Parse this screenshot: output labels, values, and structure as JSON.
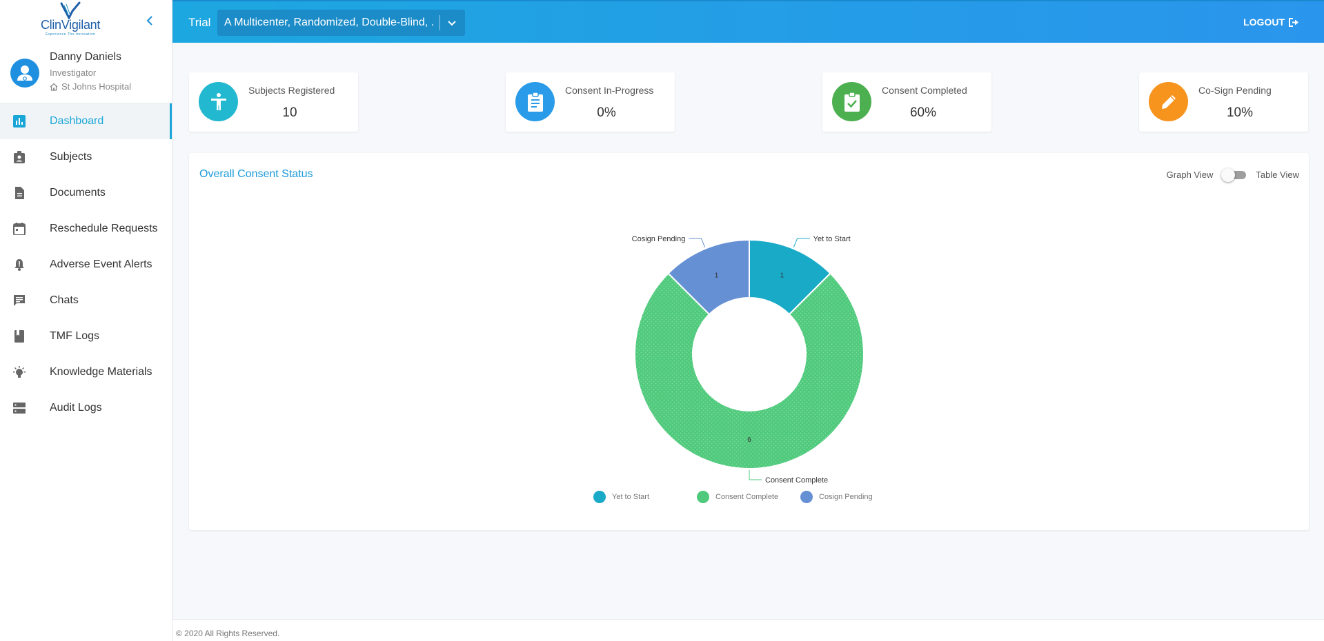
{
  "brand": {
    "name_part1": "Clin",
    "name_part2": "Vigilant",
    "tagline": "Experience The Innovation"
  },
  "user": {
    "name": "Danny Daniels",
    "role": "Investigator",
    "site": "St Johns Hospital"
  },
  "sidebar": {
    "items": [
      {
        "label": "Dashboard",
        "icon": "bar-chart-icon",
        "active": true
      },
      {
        "label": "Subjects",
        "icon": "badge-icon"
      },
      {
        "label": "Documents",
        "icon": "document-icon"
      },
      {
        "label": "Reschedule Requests",
        "icon": "calendar-icon"
      },
      {
        "label": "Adverse Event Alerts",
        "icon": "bell-alert-icon"
      },
      {
        "label": "Chats",
        "icon": "chat-icon"
      },
      {
        "label": "TMF Logs",
        "icon": "book-icon"
      },
      {
        "label": "Knowledge Materials",
        "icon": "lightbulb-icon"
      },
      {
        "label": "Audit Logs",
        "icon": "storage-icon"
      }
    ]
  },
  "header": {
    "trial_label": "Trial",
    "trial_value": "A Multicenter, Randomized, Double-Blind, ...",
    "logout_label": "LOGOUT"
  },
  "stats": [
    {
      "title": "Subjects Registered",
      "value": "10",
      "color": "#22b8cf",
      "icon": "accessibility-icon"
    },
    {
      "title": "Consent In-Progress",
      "value": "0%",
      "color": "#2a9be8",
      "icon": "assignment-icon"
    },
    {
      "title": "Consent Completed",
      "value": "60%",
      "color": "#4caf50",
      "icon": "assignment-check-icon"
    },
    {
      "title": "Co-Sign Pending",
      "value": "10%",
      "color": "#f7941d",
      "icon": "pencil-icon"
    }
  ],
  "panel": {
    "title": "Overall Consent Status",
    "graph_view_label": "Graph View",
    "table_view_label": "Table View",
    "table_view_on": false
  },
  "chart_data": {
    "type": "pie",
    "donut": true,
    "categories": [
      "Yet to Start",
      "Consent Complete",
      "Cosign Pending"
    ],
    "values": [
      1,
      6,
      1
    ],
    "colors": [
      "#19aac8",
      "#4fca7c",
      "#6590d4"
    ],
    "legend_position": "bottom"
  },
  "footer": {
    "text": "© 2020 All Rights Reserved."
  }
}
